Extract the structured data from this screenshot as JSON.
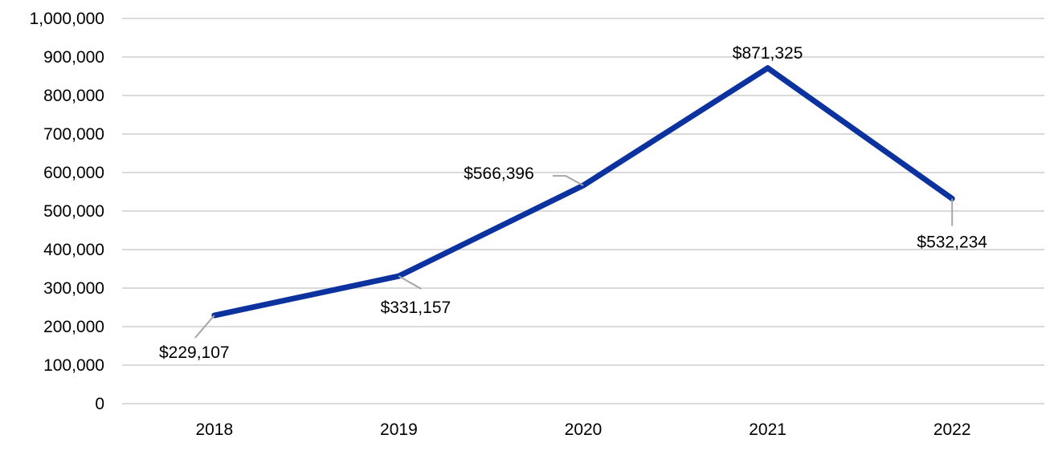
{
  "chart_data": {
    "type": "line",
    "title": "",
    "xlabel": "",
    "ylabel": "",
    "categories": [
      "2018",
      "2019",
      "2020",
      "2021",
      "2022"
    ],
    "series": [
      {
        "values": [
          229107,
          331157,
          566396,
          871325,
          532234
        ],
        "data_labels": [
          "$229,107",
          "$331,157",
          "$566,396",
          "$871,325",
          "$532,234"
        ],
        "color": "#0c32a0"
      }
    ],
    "ylim": [
      0,
      1000000
    ],
    "y_ticks": [
      0,
      100000,
      200000,
      300000,
      400000,
      500000,
      600000,
      700000,
      800000,
      900000,
      1000000
    ],
    "y_tick_labels": [
      "0",
      "100,000",
      "200,000",
      "300,000",
      "400,000",
      "500,000",
      "600,000",
      "700,000",
      "800,000",
      "900,000",
      "1,000,000"
    ],
    "grid": true,
    "legend": "none",
    "colors": {
      "line": "#0c32a0",
      "grid": "#d9d9d9",
      "leader": "#a6a6a6"
    }
  }
}
